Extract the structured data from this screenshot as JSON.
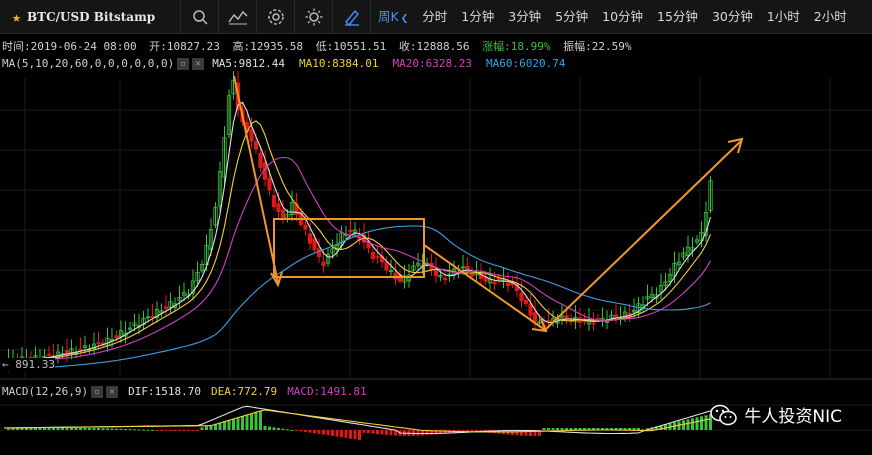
{
  "toolbar": {
    "symbol": "BTC/USD Bitstamp",
    "icons": [
      "search-icon",
      "indicator-icon",
      "settings-icon",
      "theme-icon",
      "draw-icon"
    ],
    "active_period": "周K",
    "periods": [
      "分时",
      "1分钟",
      "3分钟",
      "5分钟",
      "10分钟",
      "15分钟",
      "30分钟",
      "1小时",
      "2小时"
    ]
  },
  "info": {
    "time": "时间:2019-06-24 08:00",
    "open": "开:10827.23",
    "high": "高:12935.58",
    "low": "低:10551.51",
    "close": "收:12888.56",
    "change": "涨幅:18.99%",
    "amplitude": "振幅:22.59%"
  },
  "ma": {
    "label": "MA(5,10,20,60,0,0,0,0,0,0)",
    "ma5": "MA5:9812.44",
    "ma10": "MA10:8384.01",
    "ma20": "MA20:6328.23",
    "ma60": "MA60:6020.74"
  },
  "last_price": "← 891.33",
  "macd": {
    "label": "MACD(12,26,9)",
    "dif": "DIF:1518.70",
    "dea": "DEA:772.79",
    "macd": "MACD:1491.81"
  },
  "watermark": "牛人投资NIC",
  "colors": {
    "up": "#3cc040",
    "down": "#e01818",
    "ma5": "#e0e0e0",
    "ma10": "#f0d040",
    "ma20": "#d040c0",
    "ma60": "#3aa0e0",
    "annotation": "#f0962a"
  }
}
